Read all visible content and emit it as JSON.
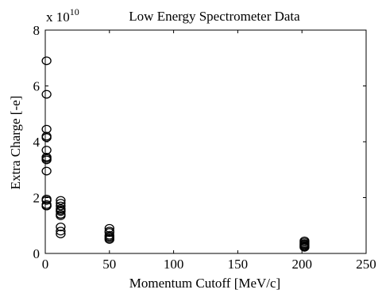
{
  "chart_data": {
    "type": "scatter",
    "title": "Low Energy Spectrometer Data",
    "xlabel": "Momentum Cutoff [MeV/c]",
    "ylabel": "Extra Charge [-e]",
    "y_multiplier": {
      "base": "x 10",
      "exponent": "10"
    },
    "xlim": [
      0,
      250
    ],
    "ylim": [
      0,
      8
    ],
    "xticks": [
      0,
      50,
      100,
      150,
      200,
      250
    ],
    "yticks": [
      0,
      2,
      4,
      6,
      8
    ],
    "xtick_labels": [
      "0",
      "50",
      "100",
      "150",
      "200",
      "250"
    ],
    "ytick_labels": [
      "0",
      "2",
      "4",
      "6",
      "8"
    ],
    "grid": false,
    "marker": "open-circle",
    "colors": {
      "marker": "#000000",
      "axes": "#000000"
    },
    "series": [
      {
        "x": [
          1,
          1,
          1,
          1,
          1,
          1,
          1,
          1,
          1,
          1,
          1,
          1,
          1,
          1,
          1,
          12,
          12,
          12,
          12,
          12,
          12,
          12,
          12,
          12,
          12,
          12,
          50,
          50,
          50,
          50,
          50,
          50,
          50,
          202,
          202,
          202,
          202,
          202,
          202,
          202
        ],
        "y": [
          6.9,
          5.7,
          4.45,
          4.2,
          4.15,
          3.7,
          3.45,
          3.4,
          3.35,
          2.95,
          1.95,
          1.9,
          1.75,
          1.7,
          1.7,
          1.9,
          1.8,
          1.7,
          1.6,
          1.55,
          1.5,
          1.4,
          1.35,
          0.95,
          0.8,
          0.7,
          0.9,
          0.8,
          0.75,
          0.65,
          0.6,
          0.55,
          0.5,
          0.45,
          0.4,
          0.35,
          0.32,
          0.28,
          0.25,
          0.22
        ]
      }
    ]
  }
}
